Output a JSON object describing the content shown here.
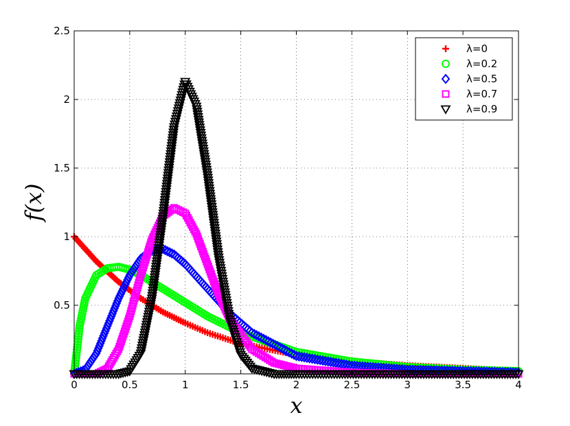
{
  "chart_data": {
    "type": "scatter",
    "title": "",
    "xlabel": "x",
    "ylabel": "f(x)",
    "xlim": [
      0,
      4
    ],
    "ylim": [
      0,
      2.5
    ],
    "grid": true,
    "legend_position": "top-right",
    "x_ticks": [
      {
        "value": 0,
        "label": "0"
      },
      {
        "value": 0.5,
        "label": "0.5"
      },
      {
        "value": 1,
        "label": "1"
      },
      {
        "value": 1.5,
        "label": "1.5"
      },
      {
        "value": 2,
        "label": "2"
      },
      {
        "value": 2.5,
        "label": "2.5"
      },
      {
        "value": 3,
        "label": "3"
      },
      {
        "value": 3.5,
        "label": "3.5"
      },
      {
        "value": 4,
        "label": "4"
      }
    ],
    "y_ticks": [
      {
        "value": 0.5,
        "label": "0.5"
      },
      {
        "value": 1,
        "label": "1"
      },
      {
        "value": 1.5,
        "label": "1.5"
      },
      {
        "value": 2,
        "label": "2"
      },
      {
        "value": 2.5,
        "label": "2.5"
      }
    ],
    "series": [
      {
        "name": "λ=0",
        "marker": "plus",
        "color": "#ff0000",
        "x": [
          0,
          0.2,
          0.4,
          0.6,
          0.8,
          1.0,
          1.2,
          1.5,
          2.0,
          2.5,
          3.0,
          3.5,
          4.0
        ],
        "y": [
          1.0,
          0.82,
          0.67,
          0.55,
          0.45,
          0.37,
          0.3,
          0.22,
          0.14,
          0.09,
          0.06,
          0.04,
          0.02
        ]
      },
      {
        "name": "λ=0.2",
        "marker": "circle",
        "color": "#00ff00",
        "x": [
          0,
          0.05,
          0.1,
          0.2,
          0.3,
          0.4,
          0.5,
          0.6,
          0.8,
          1.0,
          1.2,
          1.5,
          2.0,
          2.5,
          3.0,
          3.5,
          4.0
        ],
        "y": [
          0.0,
          0.35,
          0.55,
          0.72,
          0.77,
          0.78,
          0.76,
          0.72,
          0.62,
          0.52,
          0.42,
          0.3,
          0.16,
          0.09,
          0.05,
          0.03,
          0.02
        ]
      },
      {
        "name": "λ=0.5",
        "marker": "diamond",
        "color": "#0000ff",
        "x": [
          0,
          0.1,
          0.2,
          0.3,
          0.4,
          0.5,
          0.6,
          0.7,
          0.8,
          0.9,
          1.0,
          1.2,
          1.4,
          1.6,
          2.0,
          2.5,
          3.0,
          3.5,
          4.0
        ],
        "y": [
          0.0,
          0.03,
          0.15,
          0.35,
          0.55,
          0.72,
          0.84,
          0.9,
          0.91,
          0.87,
          0.8,
          0.62,
          0.44,
          0.3,
          0.13,
          0.06,
          0.03,
          0.02,
          0.01
        ]
      },
      {
        "name": "λ=0.7",
        "marker": "square",
        "color": "#ff00ff",
        "x": [
          0,
          0.2,
          0.3,
          0.4,
          0.5,
          0.6,
          0.7,
          0.8,
          0.9,
          1.0,
          1.1,
          1.2,
          1.3,
          1.4,
          1.6,
          1.8,
          2.0,
          2.5,
          3.0,
          4.0
        ],
        "y": [
          0.0,
          0.0,
          0.04,
          0.18,
          0.42,
          0.72,
          0.98,
          1.15,
          1.21,
          1.17,
          1.02,
          0.8,
          0.58,
          0.4,
          0.18,
          0.08,
          0.04,
          0.01,
          0.0,
          0.0
        ]
      },
      {
        "name": "λ=0.9",
        "marker": "triangle-down",
        "color": "#000000",
        "x": [
          0,
          0.4,
          0.5,
          0.6,
          0.7,
          0.8,
          0.9,
          1.0,
          1.1,
          1.2,
          1.3,
          1.4,
          1.5,
          1.6,
          1.8,
          2.0,
          3.0,
          4.0
        ],
        "y": [
          0.0,
          0.0,
          0.02,
          0.15,
          0.55,
          1.15,
          1.8,
          2.13,
          1.95,
          1.45,
          0.85,
          0.4,
          0.14,
          0.04,
          0.0,
          0.0,
          0.0,
          0.0
        ]
      }
    ]
  }
}
